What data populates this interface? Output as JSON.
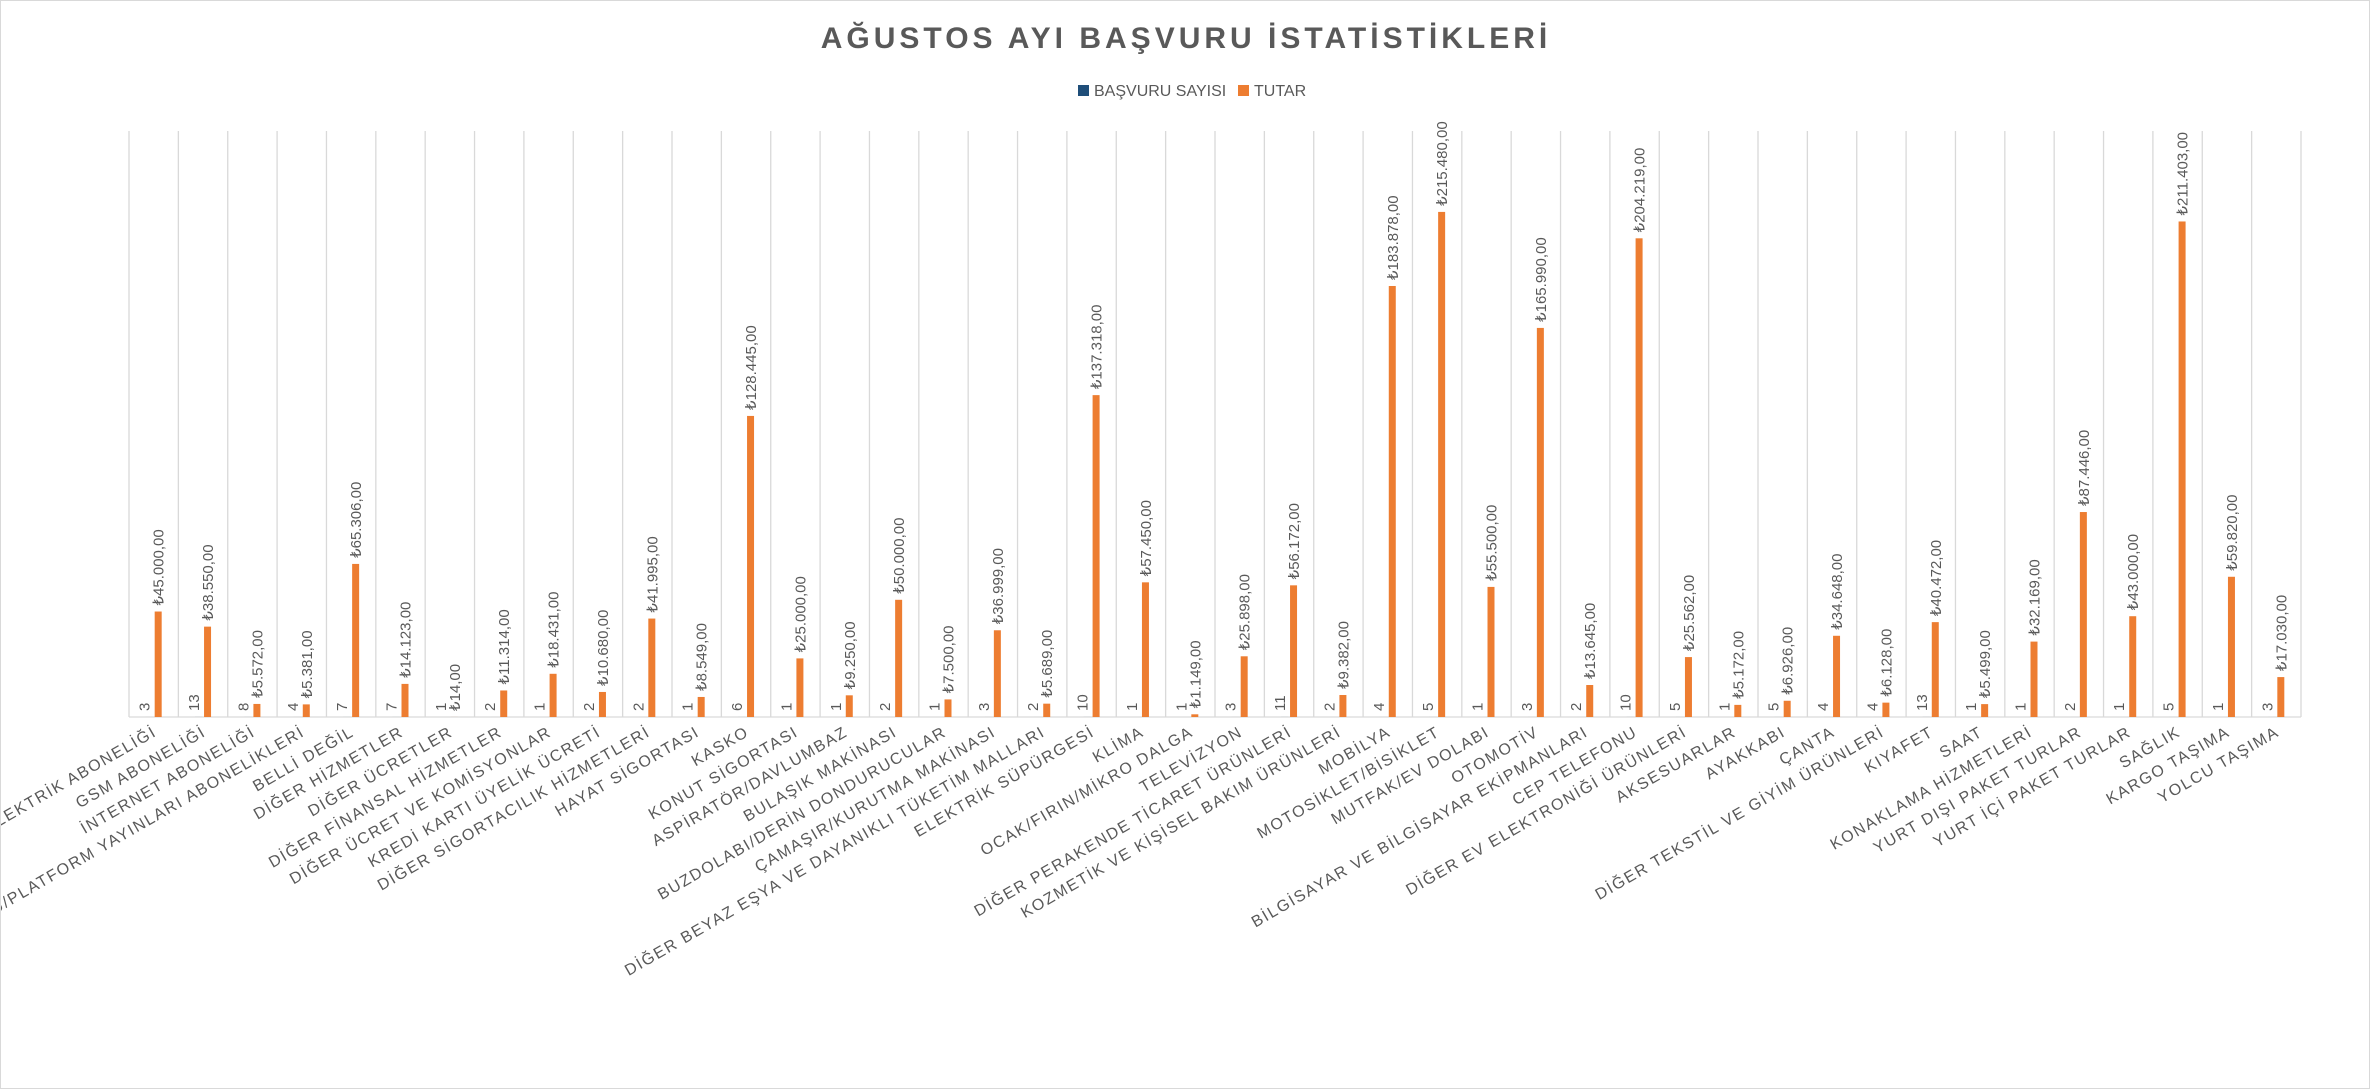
{
  "chart_data": {
    "type": "bar",
    "title": "AĞUSTOS AYI BAŞVURU İSTATİSTİKLERİ",
    "legend_position": "top",
    "grid": true,
    "ylim": [
      0,
      250000
    ],
    "colors": {
      "basvuru": "#1f4e79",
      "tutar": "#ed7d31"
    },
    "categories": [
      "ELEKTRİK ABONELİĞİ",
      "GSM ABONELİĞİ",
      "İNTERNET ABONELİĞİ",
      "KABLOLU/UYDU/PLATFORM YAYINLARI ABONELİKLERİ",
      "BELLİ DEĞİL",
      "DİĞER HİZMETLER",
      "DİĞER ÜCRETLER",
      "DİĞER FİNANSAL HİZMETLER",
      "DİĞER ÜCRET VE KOMİSYONLAR",
      "KREDİ KARTI ÜYELİK ÜCRETİ",
      "DİĞER SİGORTACILIK HİZMETLERİ",
      "HAYAT SİGORTASI",
      "KASKO",
      "KONUT SİGORTASI",
      "ASPİRATÖR/DAVLUMBAZ",
      "BULAŞIK MAKİNASI",
      "BUZDOLABI/DERİN DONDURUCULAR",
      "ÇAMAŞIR/KURUTMA MAKİNASI",
      "DİĞER BEYAZ EŞYA VE DAYANIKLI TÜKETİM MALLARI",
      "ELEKTRİK SÜPÜRGESİ",
      "KLİMA",
      "OCAK/FIRIN/MİKRO DALGA",
      "TELEVİZYON",
      "DİĞER PERAKENDE TİCARET ÜRÜNLERİ",
      "KOZMETİK VE KİŞİSEL BAKIM ÜRÜNLERİ",
      "MOBİLYA",
      "MOTOSİKLET/BİSİKLET",
      "MUTFAK/EV DOLABI",
      "OTOMOTİV",
      "BİLGİSAYAR VE BİLGİSAYAR EKİPMANLARI",
      "CEP TELEFONU",
      "DİĞER EV ELEKTRONİĞİ ÜRÜNLERİ",
      "AKSESUARLAR",
      "AYAKKABI",
      "ÇANTA",
      "DİĞER TEKSTİL VE GİYİM ÜRÜNLERİ",
      "KIYAFET",
      "SAAT",
      "KONAKLAMA HİZMETLERİ",
      "YURT DIŞI PAKET TURLAR",
      "YURT İÇİ PAKET TURLAR",
      "SAĞLIK",
      "KARGO TAŞIMA",
      "YOLCU TAŞIMA"
    ],
    "series": [
      {
        "name": "BAŞVURU SAYISI",
        "values": [
          3,
          13,
          8,
          4,
          7,
          7,
          1,
          2,
          1,
          2,
          2,
          1,
          6,
          1,
          1,
          2,
          1,
          3,
          2,
          10,
          1,
          1,
          3,
          11,
          2,
          4,
          5,
          1,
          3,
          2,
          10,
          5,
          1,
          5,
          4,
          4,
          13,
          1,
          1,
          2,
          1,
          5,
          1,
          3
        ],
        "labels": [
          "3",
          "13",
          "8",
          "4",
          "7",
          "7",
          "1",
          "2",
          "1",
          "2",
          "2",
          "1",
          "6",
          "1",
          "1",
          "2",
          "1",
          "3",
          "2",
          "10",
          "1",
          "1",
          "3",
          "11",
          "2",
          "4",
          "5",
          "1",
          "3",
          "2",
          "10",
          "5",
          "1",
          "5",
          "4",
          "4",
          "13",
          "1",
          "1",
          "2",
          "1",
          "5",
          "1",
          "3"
        ]
      },
      {
        "name": "TUTAR",
        "values": [
          45000,
          38550,
          5572,
          5381,
          65306,
          14123,
          14,
          11314,
          18431,
          10680,
          41995,
          8549,
          128445,
          25000,
          9250,
          50000,
          7500,
          36999,
          5689,
          137318,
          57450,
          1149,
          25898,
          56172,
          9382,
          183878,
          215480,
          55500,
          165990,
          13645,
          204219,
          25562,
          5172,
          6926,
          34648,
          6128,
          40472,
          5499,
          32169,
          87446,
          43000,
          211403,
          59820,
          17030
        ],
        "labels": [
          "₺45.000,00",
          "₺38.550,00",
          "₺5.572,00",
          "₺5.381,00",
          "₺65.306,00",
          "₺14.123,00",
          "₺14,00",
          "₺11.314,00",
          "₺18.431,00",
          "₺10.680,00",
          "₺41.995,00",
          "₺8.549,00",
          "₺128.445,00",
          "₺25.000,00",
          "₺9.250,00",
          "₺50.000,00",
          "₺7.500,00",
          "₺36.999,00",
          "₺5.689,00",
          "₺137.318,00",
          "₺57.450,00",
          "₺1.149,00",
          "₺25.898,00",
          "₺56.172,00",
          "₺9.382,00",
          "₺183.878,00",
          "₺215.480,00",
          "₺55.500,00",
          "₺165.990,00",
          "₺13.645,00",
          "₺204.219,00",
          "₺25.562,00",
          "₺5.172,00",
          "₺6.926,00",
          "₺34.648,00",
          "₺6.128,00",
          "₺40.472,00",
          "₺5.499,00",
          "₺32.169,00",
          "₺87.446,00",
          "₺43.000,00",
          "₺211.403,00",
          "₺59.820,00",
          "₺17.030,00"
        ]
      }
    ]
  }
}
